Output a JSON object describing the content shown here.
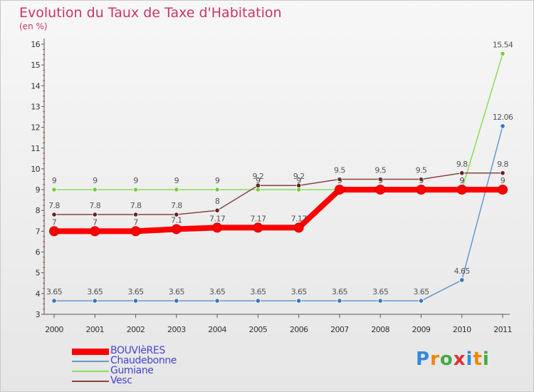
{
  "title": "Evolution du Taux de Taxe d'Habitation",
  "subtitle": "(en %)",
  "logo": {
    "text": "Proxiti",
    "colors": [
      "#3388dd",
      "#ee8800",
      "#44aa44",
      "#dd3333",
      "#3388dd",
      "#ee8800",
      "#44aa44"
    ]
  },
  "chart_data": {
    "type": "line",
    "title": "Evolution du Taux de Taxe d'Habitation",
    "ylabel": "(en %)",
    "xlabel": "",
    "ylim": [
      3,
      16
    ],
    "yticks": [
      3,
      4,
      5,
      6,
      7,
      8,
      9,
      10,
      11,
      12,
      13,
      14,
      15,
      16
    ],
    "categories": [
      "2000",
      "2001",
      "2002",
      "2003",
      "2004",
      "2005",
      "2006",
      "2007",
      "2008",
      "2009",
      "2010",
      "2011"
    ],
    "series": [
      {
        "name": "BOUVIèRES",
        "color": "#ff0000",
        "values": [
          7,
          7,
          7,
          7.1,
          7.17,
          7.17,
          7.17,
          9,
          9,
          9,
          9,
          9
        ],
        "labels": [
          "7",
          "7",
          "7",
          "7.1",
          "7.17",
          "7.17",
          "7.17",
          "9",
          "9",
          "9",
          "9",
          "9"
        ]
      },
      {
        "name": "Chaudebonne",
        "color": "#6699cc",
        "values": [
          3.65,
          3.65,
          3.65,
          3.65,
          3.65,
          3.65,
          3.65,
          3.65,
          3.65,
          3.65,
          4.65,
          12.06
        ],
        "labels": [
          "3.65",
          "3.65",
          "3.65",
          "3.65",
          "3.65",
          "3.65",
          "3.65",
          "3.65",
          "3.65",
          "3.65",
          "4.65",
          "12.06"
        ]
      },
      {
        "name": "Gumiane",
        "color": "#88dd55",
        "values": [
          9,
          9,
          9,
          9,
          9,
          9,
          9,
          9,
          9,
          9,
          9,
          15.54
        ],
        "labels": [
          "9",
          "9",
          "9",
          "9",
          "9",
          "9",
          "9",
          "9",
          "9",
          "9",
          "9",
          "15.54"
        ]
      },
      {
        "name": "Vesc",
        "color": "#884444",
        "values": [
          7.8,
          7.8,
          7.8,
          7.8,
          8,
          9.2,
          9.2,
          9.5,
          9.5,
          9.5,
          9.8,
          9.8
        ],
        "labels": [
          "7.8",
          "7.8",
          "7.8",
          "7.8",
          "8",
          "9.2",
          "9.2",
          "9.5",
          "9.5",
          "9.5",
          "9.8",
          "9.8"
        ]
      }
    ],
    "legend_position": "bottom-left",
    "grid": false
  }
}
